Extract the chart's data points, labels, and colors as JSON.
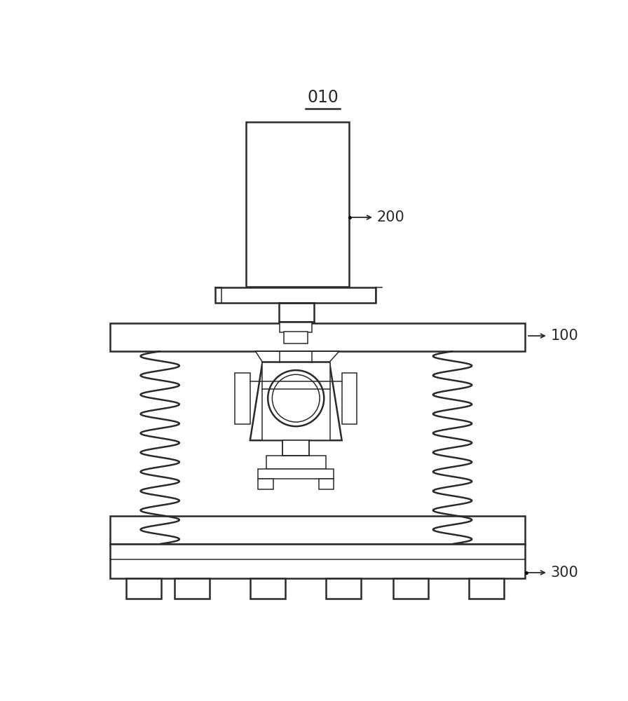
{
  "bg_color": "#ffffff",
  "line_color": "#2a2a2a",
  "label_010": "010",
  "label_100": "100",
  "label_200": "200",
  "label_300": "300",
  "fig_width": 8.96,
  "fig_height": 10.0
}
